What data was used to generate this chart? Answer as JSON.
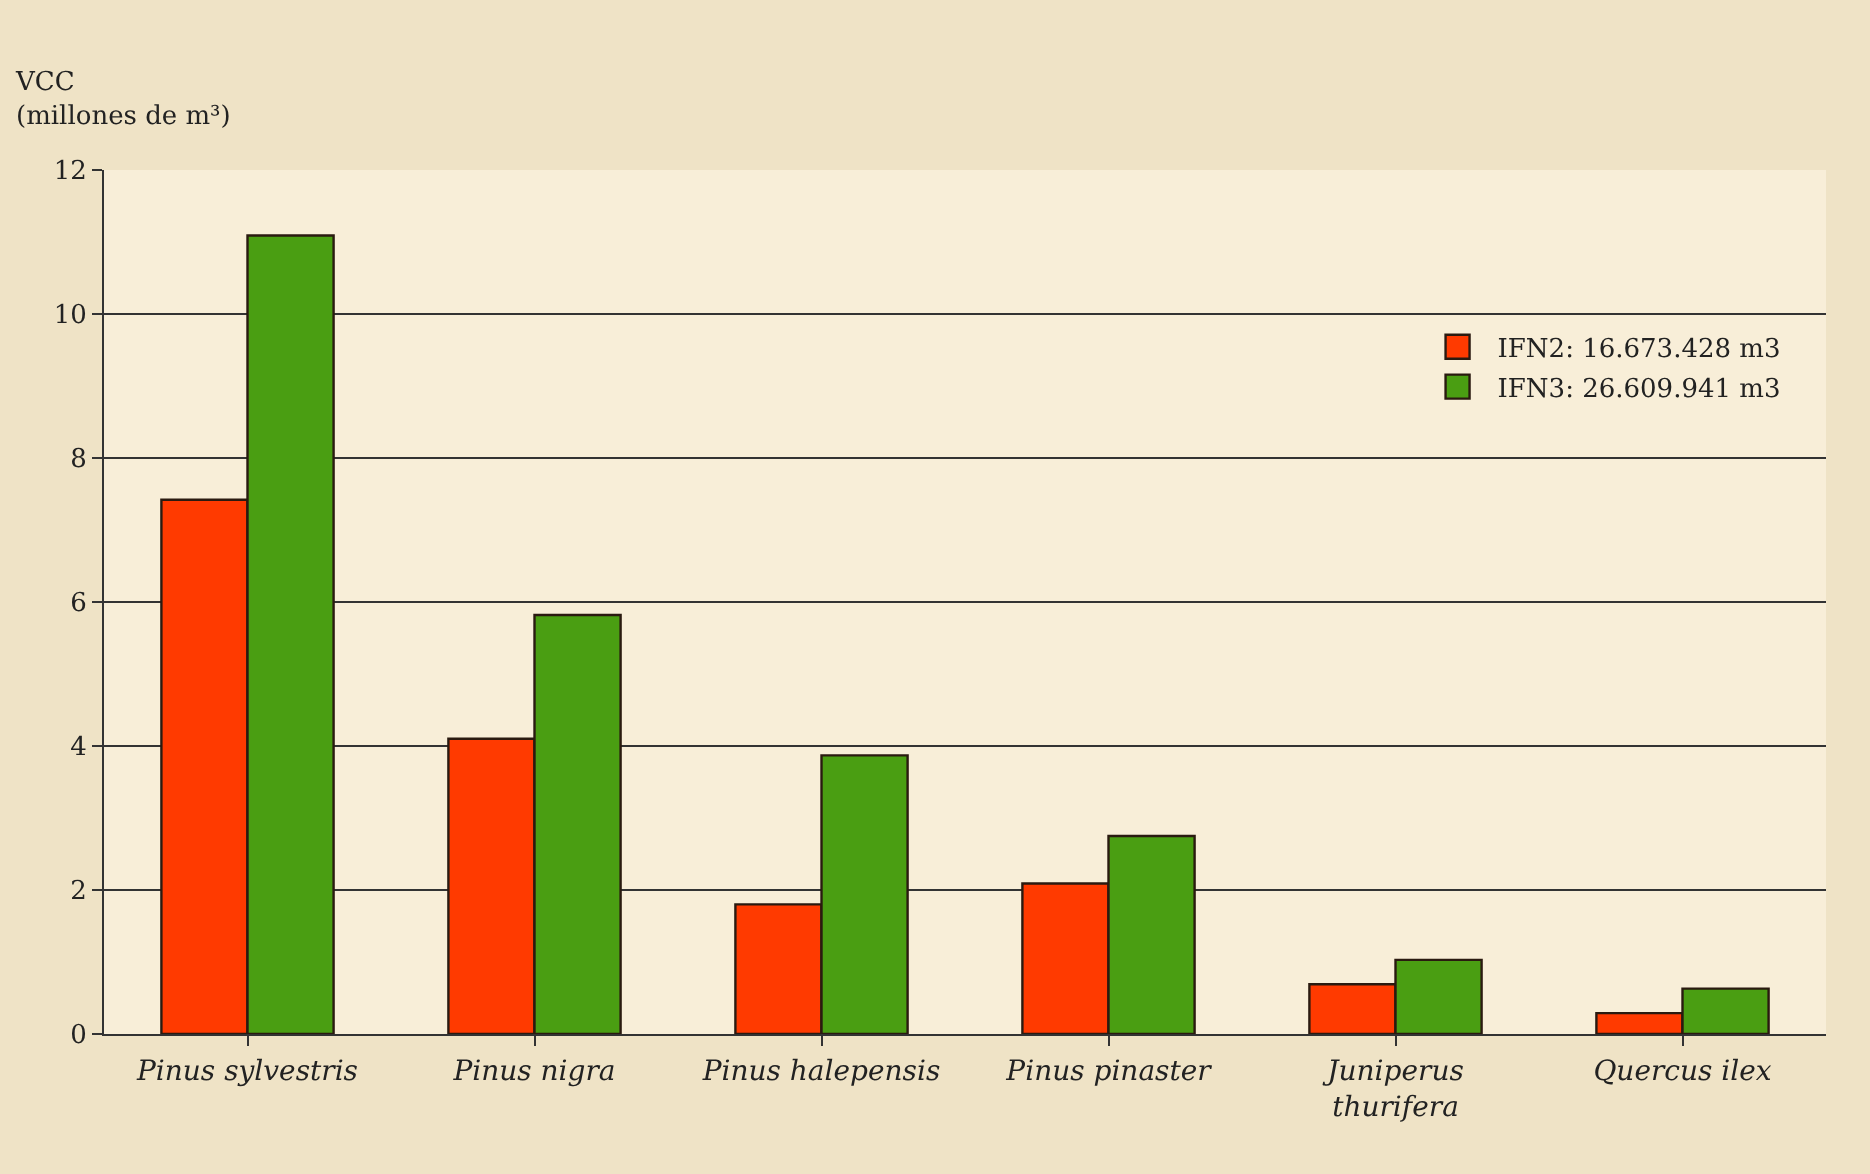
{
  "chart_data": {
    "type": "bar",
    "ylabel": "VCC (millones de m³)",
    "categories": [
      "Pinus sylvestris",
      "Pinus nigra",
      "Pinus halepensis",
      "Pinus pinaster",
      "Juniperus thurifera",
      "Quercus ilex"
    ],
    "series": [
      {
        "name": "IFN2: 16.673.428 m3",
        "color": "#ff3a00",
        "values": [
          7.42,
          4.1,
          1.8,
          2.09,
          0.69,
          0.29
        ]
      },
      {
        "name": "IFN3: 26.609.941 m3",
        "color": "#4a9e12",
        "values": [
          11.09,
          5.82,
          3.87,
          2.75,
          1.03,
          0.63
        ]
      }
    ],
    "ylim": [
      0,
      12
    ],
    "yticks": [
      0,
      2,
      4,
      6,
      8,
      10,
      12
    ],
    "grid": "y",
    "legend": "top right"
  }
}
